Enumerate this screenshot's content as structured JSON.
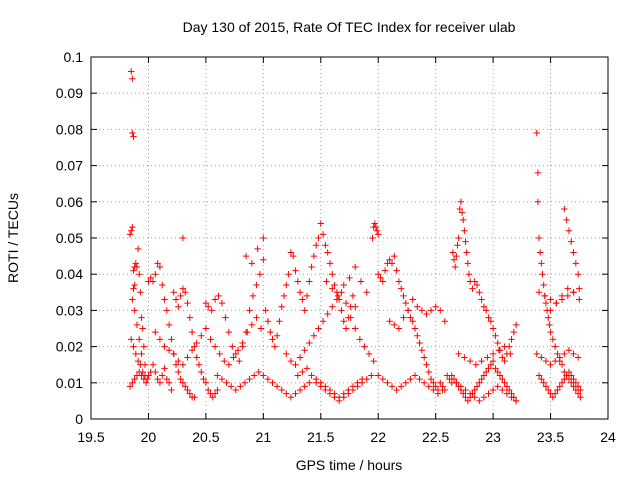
{
  "chart_data": {
    "type": "scatter",
    "title": "Day 130 of 2015, Rate Of TEC Index for receiver ulab",
    "xlabel": "GPS time / hours",
    "ylabel": "ROTI / TECUs",
    "xlim": [
      19.5,
      24
    ],
    "ylim": [
      0,
      0.1
    ],
    "xticks": [
      "19.5",
      "20",
      "20.5",
      "21",
      "21.5",
      "22",
      "22.5",
      "23",
      "23.5",
      "24"
    ],
    "yticks": [
      "0",
      "0.01",
      "0.02",
      "0.03",
      "0.04",
      "0.05",
      "0.06",
      "0.07",
      "0.08",
      "0.09",
      "0.1"
    ],
    "grid": true,
    "marker": "plus",
    "color": "#ff0000",
    "series": [
      {
        "x": [
          19.85,
          19.86,
          19.86,
          19.87,
          19.84,
          19.85,
          19.86,
          19.87,
          19.88,
          19.87,
          19.88,
          19.89,
          19.9,
          19.91,
          19.92,
          19.93,
          19.94,
          19.95,
          19.96,
          19.97,
          19.86,
          19.88,
          19.9,
          19.92,
          19.94,
          19.85,
          19.87,
          19.89,
          19.91,
          19.93,
          19.95,
          19.97,
          19.99,
          19.84,
          19.86,
          19.88,
          19.9,
          19.92,
          19.94,
          19.96,
          19.98,
          20.0,
          20.02,
          20.04,
          20.06,
          20.08,
          20.1,
          20.12,
          20.14,
          20.16,
          20.18,
          20.2,
          20.0,
          20.02,
          20.04,
          20.06,
          20.08,
          20.1,
          20.12,
          20.14,
          20.16,
          20.18,
          20.2,
          20.22,
          20.24,
          20.26,
          20.28,
          20.3,
          20.32,
          20.34,
          20.36,
          20.38,
          20.4,
          20.22,
          20.24,
          20.26,
          20.28,
          20.3,
          20.32,
          20.34,
          20.36,
          20.38,
          20.4,
          20.42,
          20.44,
          20.46,
          20.48,
          20.5,
          20.52,
          20.54,
          20.56,
          20.58,
          20.6,
          20.3,
          20.06,
          20.1,
          20.14,
          20.18,
          20.22,
          20.26,
          20.3,
          20.34,
          20.38,
          20.42,
          20.46,
          20.5,
          20.54,
          20.58,
          20.62,
          20.66,
          20.7,
          20.74,
          20.78,
          20.82,
          20.86,
          20.9,
          20.94,
          20.98,
          20.5,
          20.52,
          20.55,
          20.58,
          20.61,
          20.64,
          20.67,
          20.7,
          20.73,
          20.76,
          20.79,
          20.82,
          20.85,
          20.88,
          20.91,
          20.94,
          20.97,
          21.0,
          20.6,
          20.64,
          20.68,
          20.72,
          20.76,
          20.8,
          20.84,
          20.88,
          20.92,
          20.96,
          21.0,
          21.04,
          21.08,
          21.12,
          21.16,
          21.2,
          21.24,
          21.28,
          21.32,
          21.36,
          21.4,
          20.85,
          20.9,
          20.95,
          21.0,
          21.02,
          21.04,
          21.06,
          21.08,
          21.1,
          21.12,
          21.14,
          21.16,
          21.18,
          21.2,
          21.22,
          21.24,
          21.26,
          21.28,
          21.3,
          21.32,
          21.34,
          21.36,
          21.38,
          21.4,
          21.42,
          21.44,
          21.46,
          21.48,
          21.5,
          21.52,
          21.54,
          21.56,
          21.58,
          21.6,
          21.62,
          21.64,
          21.66,
          21.68,
          21.7,
          21.72,
          21.74,
          21.76,
          21.78,
          21.8,
          21.2,
          21.24,
          21.28,
          21.32,
          21.36,
          21.4,
          21.44,
          21.48,
          21.52,
          21.56,
          21.6,
          21.64,
          21.68,
          21.72,
          21.76,
          21.8,
          21.84,
          21.88,
          21.92,
          21.96,
          21.46,
          21.5,
          21.54,
          21.58,
          21.62,
          21.66,
          21.7,
          21.74,
          21.78,
          21.82,
          21.86,
          21.9,
          21.94,
          21.3,
          21.34,
          21.38,
          21.42,
          21.46,
          21.5,
          21.54,
          21.58,
          21.62,
          21.66,
          21.7,
          21.74,
          21.78,
          21.82,
          21.86,
          21.55,
          21.6,
          21.65,
          21.7,
          21.75,
          21.8,
          21.85,
          21.9,
          21.95,
          21.96,
          21.97,
          21.98,
          21.99,
          22.0,
          22.0,
          22.02,
          22.04,
          22.06,
          22.08,
          22.1,
          22.12,
          22.14,
          22.16,
          22.18,
          22.2,
          22.22,
          22.24,
          22.26,
          22.28,
          22.3,
          22.32,
          22.34,
          22.36,
          22.38,
          22.4,
          22.42,
          22.44,
          22.46,
          22.48,
          22.5,
          22.52,
          22.54,
          22.56,
          22.58,
          22.0,
          22.04,
          22.08,
          22.12,
          22.16,
          22.2,
          22.24,
          22.28,
          22.32,
          22.36,
          22.4,
          22.44,
          22.48,
          22.52,
          22.56,
          22.1,
          22.14,
          22.18,
          22.22,
          22.26,
          22.3,
          22.34,
          22.38,
          22.42,
          22.46,
          22.5,
          22.54,
          22.58,
          22.6,
          22.62,
          22.64,
          22.65,
          22.66,
          22.67,
          22.68,
          22.69,
          22.7,
          22.71,
          22.72,
          22.73,
          22.74,
          22.75,
          22.76,
          22.77,
          22.78,
          22.79,
          22.8,
          22.82,
          22.84,
          22.86,
          22.88,
          22.9,
          22.92,
          22.94,
          22.96,
          22.98,
          23.0,
          23.02,
          23.04,
          23.06,
          23.08,
          23.1,
          23.12,
          23.14,
          23.16,
          23.18,
          23.2,
          22.64,
          22.66,
          22.68,
          22.7,
          22.72,
          22.74,
          22.76,
          22.78,
          22.8,
          22.82,
          22.84,
          22.86,
          22.88,
          22.9,
          22.92,
          22.94,
          22.96,
          22.98,
          23.0,
          23.02,
          23.04,
          23.06,
          23.08,
          23.1,
          23.12,
          23.14,
          23.16,
          23.18,
          23.2,
          22.7,
          22.75,
          22.8,
          22.85,
          22.9,
          22.95,
          23.0,
          23.05,
          23.1,
          23.15,
          22.68,
          22.72,
          22.76,
          22.8,
          22.84,
          22.88,
          22.92,
          22.96,
          23.0,
          23.04,
          23.08,
          23.12,
          23.16,
          23.2,
          23.38,
          23.39,
          23.39,
          23.4,
          23.41,
          23.42,
          23.43,
          23.44,
          23.45,
          23.46,
          23.47,
          23.48,
          23.49,
          23.5,
          23.52,
          23.54,
          23.56,
          23.58,
          23.6,
          23.62,
          23.64,
          23.66,
          23.68,
          23.7,
          23.72,
          23.74,
          23.76,
          23.4,
          23.42,
          23.44,
          23.46,
          23.48,
          23.5,
          23.52,
          23.54,
          23.56,
          23.58,
          23.6,
          23.62,
          23.64,
          23.66,
          23.68,
          23.7,
          23.72,
          23.74,
          23.76,
          23.5,
          23.55,
          23.6,
          23.65,
          23.7,
          23.75,
          23.62,
          23.64,
          23.66,
          23.68,
          23.7,
          23.72,
          23.74,
          23.38,
          23.42,
          23.46,
          23.5,
          23.54,
          23.58,
          23.62,
          23.66,
          23.7,
          23.74,
          23.4,
          23.45,
          23.5,
          23.55,
          23.6,
          23.65,
          23.7,
          23.75
        ],
        "y": [
          0.096,
          0.094,
          0.079,
          0.078,
          0.051,
          0.052,
          0.053,
          0.036,
          0.037,
          0.041,
          0.042,
          0.043,
          0.042,
          0.047,
          0.04,
          0.035,
          0.028,
          0.025,
          0.02,
          0.015,
          0.033,
          0.03,
          0.026,
          0.022,
          0.018,
          0.022,
          0.02,
          0.018,
          0.016,
          0.015,
          0.013,
          0.012,
          0.011,
          0.009,
          0.01,
          0.011,
          0.012,
          0.013,
          0.012,
          0.011,
          0.01,
          0.012,
          0.013,
          0.015,
          0.013,
          0.011,
          0.01,
          0.012,
          0.014,
          0.011,
          0.01,
          0.008,
          0.038,
          0.039,
          0.038,
          0.04,
          0.043,
          0.042,
          0.037,
          0.033,
          0.03,
          0.026,
          0.022,
          0.018,
          0.015,
          0.013,
          0.011,
          0.01,
          0.009,
          0.008,
          0.007,
          0.006,
          0.006,
          0.035,
          0.033,
          0.031,
          0.034,
          0.036,
          0.035,
          0.032,
          0.028,
          0.024,
          0.02,
          0.017,
          0.015,
          0.013,
          0.011,
          0.01,
          0.008,
          0.007,
          0.006,
          0.007,
          0.008,
          0.05,
          0.024,
          0.022,
          0.02,
          0.019,
          0.018,
          0.016,
          0.015,
          0.017,
          0.019,
          0.021,
          0.023,
          0.025,
          0.022,
          0.02,
          0.018,
          0.016,
          0.015,
          0.017,
          0.019,
          0.021,
          0.024,
          0.026,
          0.028,
          0.025,
          0.032,
          0.031,
          0.03,
          0.033,
          0.034,
          0.032,
          0.028,
          0.024,
          0.02,
          0.018,
          0.016,
          0.02,
          0.024,
          0.03,
          0.034,
          0.037,
          0.04,
          0.044,
          0.012,
          0.011,
          0.01,
          0.009,
          0.008,
          0.009,
          0.01,
          0.011,
          0.012,
          0.013,
          0.012,
          0.011,
          0.01,
          0.009,
          0.008,
          0.007,
          0.006,
          0.007,
          0.008,
          0.009,
          0.01,
          0.045,
          0.043,
          0.047,
          0.05,
          0.03,
          0.027,
          0.024,
          0.022,
          0.02,
          0.023,
          0.027,
          0.031,
          0.034,
          0.037,
          0.04,
          0.046,
          0.045,
          0.041,
          0.038,
          0.035,
          0.033,
          0.03,
          0.034,
          0.038,
          0.042,
          0.045,
          0.048,
          0.05,
          0.054,
          0.051,
          0.048,
          0.046,
          0.043,
          0.04,
          0.037,
          0.035,
          0.033,
          0.03,
          0.027,
          0.025,
          0.028,
          0.031,
          0.034,
          0.031,
          0.018,
          0.016,
          0.015,
          0.017,
          0.019,
          0.021,
          0.023,
          0.025,
          0.027,
          0.029,
          0.031,
          0.033,
          0.035,
          0.032,
          0.028,
          0.025,
          0.022,
          0.02,
          0.018,
          0.016,
          0.01,
          0.009,
          0.008,
          0.007,
          0.006,
          0.005,
          0.006,
          0.007,
          0.008,
          0.009,
          0.01,
          0.011,
          0.012,
          0.012,
          0.013,
          0.014,
          0.012,
          0.011,
          0.01,
          0.009,
          0.008,
          0.007,
          0.006,
          0.007,
          0.008,
          0.009,
          0.01,
          0.011,
          0.038,
          0.036,
          0.034,
          0.037,
          0.039,
          0.042,
          0.038,
          0.035,
          0.05,
          0.053,
          0.054,
          0.053,
          0.052,
          0.051,
          0.04,
          0.039,
          0.038,
          0.041,
          0.043,
          0.044,
          0.043,
          0.045,
          0.041,
          0.038,
          0.036,
          0.034,
          0.032,
          0.03,
          0.028,
          0.027,
          0.025,
          0.023,
          0.021,
          0.019,
          0.017,
          0.015,
          0.013,
          0.011,
          0.01,
          0.009,
          0.008,
          0.01,
          0.009,
          0.008,
          0.012,
          0.011,
          0.01,
          0.009,
          0.008,
          0.009,
          0.01,
          0.011,
          0.012,
          0.011,
          0.01,
          0.009,
          0.008,
          0.007,
          0.008,
          0.027,
          0.026,
          0.025,
          0.028,
          0.03,
          0.033,
          0.031,
          0.03,
          0.029,
          0.03,
          0.031,
          0.03,
          0.027,
          0.012,
          0.011,
          0.01,
          0.046,
          0.044,
          0.042,
          0.045,
          0.048,
          0.05,
          0.058,
          0.06,
          0.057,
          0.055,
          0.052,
          0.049,
          0.046,
          0.043,
          0.04,
          0.038,
          0.036,
          0.038,
          0.037,
          0.035,
          0.033,
          0.031,
          0.03,
          0.028,
          0.027,
          0.025,
          0.023,
          0.021,
          0.019,
          0.017,
          0.016,
          0.018,
          0.02,
          0.022,
          0.024,
          0.026,
          0.012,
          0.011,
          0.01,
          0.009,
          0.008,
          0.007,
          0.006,
          0.005,
          0.006,
          0.007,
          0.008,
          0.009,
          0.01,
          0.011,
          0.012,
          0.013,
          0.014,
          0.015,
          0.016,
          0.014,
          0.013,
          0.012,
          0.011,
          0.01,
          0.009,
          0.008,
          0.007,
          0.006,
          0.005,
          0.018,
          0.017,
          0.016,
          0.015,
          0.016,
          0.017,
          0.018,
          0.019,
          0.02,
          0.018,
          0.01,
          0.009,
          0.008,
          0.007,
          0.006,
          0.005,
          0.006,
          0.007,
          0.008,
          0.009,
          0.008,
          0.007,
          0.006,
          0.005,
          0.079,
          0.068,
          0.06,
          0.05,
          0.046,
          0.043,
          0.04,
          0.037,
          0.034,
          0.032,
          0.03,
          0.028,
          0.026,
          0.024,
          0.022,
          0.02,
          0.018,
          0.016,
          0.015,
          0.013,
          0.012,
          0.011,
          0.01,
          0.009,
          0.008,
          0.007,
          0.006,
          0.012,
          0.011,
          0.01,
          0.009,
          0.008,
          0.007,
          0.006,
          0.007,
          0.008,
          0.009,
          0.01,
          0.011,
          0.012,
          0.013,
          0.012,
          0.011,
          0.01,
          0.009,
          0.008,
          0.03,
          0.032,
          0.034,
          0.036,
          0.035,
          0.033,
          0.058,
          0.055,
          0.052,
          0.049,
          0.046,
          0.043,
          0.04,
          0.018,
          0.017,
          0.016,
          0.015,
          0.016,
          0.017,
          0.018,
          0.019,
          0.018,
          0.017,
          0.035,
          0.034,
          0.033,
          0.032,
          0.033,
          0.034,
          0.035,
          0.036
        ]
      }
    ]
  }
}
